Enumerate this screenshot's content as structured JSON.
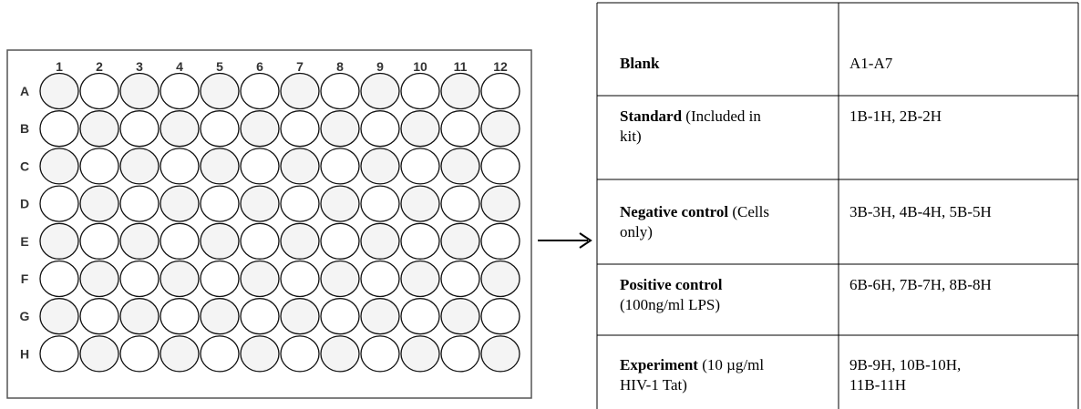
{
  "plate": {
    "columns": [
      "1",
      "2",
      "3",
      "4",
      "5",
      "6",
      "7",
      "8",
      "9",
      "10",
      "11",
      "12"
    ],
    "rows": [
      "A",
      "B",
      "C",
      "D",
      "E",
      "F",
      "G",
      "H"
    ]
  },
  "table": {
    "rows": [
      {
        "label": "Blank",
        "wells": "A1-A7"
      },
      {
        "label": "Standard",
        "detail": "(Included in kit)",
        "wells": "1B-1H, 2B-2H"
      },
      {
        "label": "Negative control",
        "detail": "(Cells only)",
        "wells": "3B-3H, 4B-4H, 5B-5H"
      },
      {
        "label": "Positive control",
        "detail": "(100ng/ml LPS)",
        "wells": "6B-6H, 7B-7H, 8B-8H"
      },
      {
        "label": "Experiment",
        "detail": "(10 µg/ml HIV-1 Tat)",
        "wells": "9B-9H, 10B-10H, 11B-11H"
      }
    ]
  }
}
